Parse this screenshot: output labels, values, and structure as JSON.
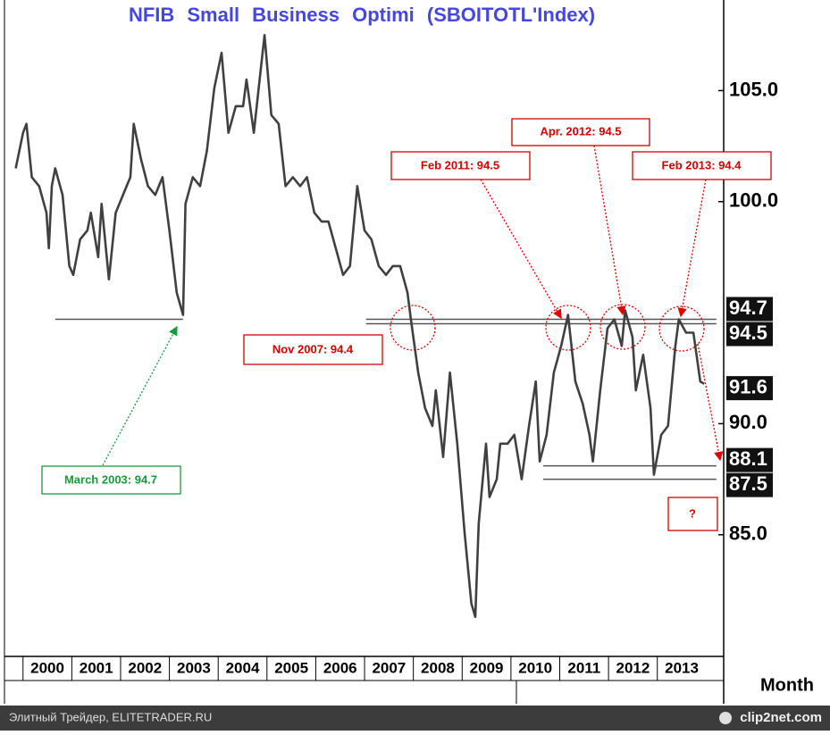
{
  "chart_data": {
    "type": "line",
    "title": "NFIB Small Business Optimi (SBOITOTL'Index)",
    "x_axis_label": "Month",
    "color": "#404040",
    "x": [
      1999.85,
      2000.0,
      2000.07,
      2000.18,
      2000.33,
      2000.48,
      2000.53,
      2000.59,
      2000.66,
      2000.81,
      2000.95,
      2001.03,
      2001.17,
      2001.32,
      2001.39,
      2001.54,
      2001.61,
      2001.76,
      2001.9,
      2002.05,
      2002.2,
      2002.27,
      2002.42,
      2002.56,
      2002.71,
      2002.86,
      2003.0,
      2003.15,
      2003.28,
      2003.33,
      2003.48,
      2003.63,
      2003.77,
      2003.92,
      2004.07,
      2004.21,
      2004.36,
      2004.51,
      2004.58,
      2004.73,
      2004.87,
      2004.95,
      2005.09,
      2005.24,
      2005.38,
      2005.53,
      2005.68,
      2005.82,
      2005.97,
      2006.12,
      2006.26,
      2006.41,
      2006.56,
      2006.7,
      2006.85,
      2007.0,
      2007.14,
      2007.29,
      2007.44,
      2007.58,
      2007.73,
      2007.88,
      2007.95,
      2008.1,
      2008.24,
      2008.39,
      2008.46,
      2008.61,
      2008.75,
      2008.9,
      2009.05,
      2009.19,
      2009.27,
      2009.34,
      2009.49,
      2009.56,
      2009.71,
      2009.78,
      2009.93,
      2010.07,
      2010.22,
      2010.37,
      2010.51,
      2010.59,
      2010.73,
      2010.88,
      2011.03,
      2011.17,
      2011.32,
      2011.47,
      2011.61,
      2011.68,
      2011.83,
      2011.98,
      2012.12,
      2012.27,
      2012.34,
      2012.49,
      2012.56,
      2012.71,
      2012.86,
      2012.93,
      2013.08,
      2013.22,
      2013.37,
      2013.44,
      2013.59,
      2013.74,
      2013.88,
      2013.96
    ],
    "values": [
      101.5,
      103.1,
      103.5,
      101.1,
      100.7,
      99.5,
      97.9,
      100.7,
      101.5,
      100.3,
      97.1,
      96.7,
      98.3,
      98.7,
      99.5,
      97.5,
      99.9,
      96.5,
      99.5,
      100.3,
      101.1,
      103.5,
      101.9,
      100.7,
      100.3,
      101.1,
      98.7,
      95.9,
      94.9,
      99.9,
      101.1,
      100.7,
      102.3,
      105.1,
      106.7,
      103.1,
      104.3,
      104.3,
      105.5,
      103.1,
      105.9,
      107.5,
      103.9,
      103.5,
      100.7,
      101.1,
      100.7,
      101.1,
      99.5,
      99.1,
      99.1,
      97.9,
      96.7,
      97.1,
      100.7,
      98.7,
      98.3,
      97.1,
      96.7,
      97.1,
      97.1,
      95.9,
      94.7,
      92.3,
      90.7,
      89.9,
      91.5,
      88.5,
      92.3,
      89.1,
      85.1,
      81.9,
      81.3,
      85.5,
      89.1,
      86.7,
      87.5,
      89.1,
      89.1,
      89.5,
      87.5,
      89.9,
      91.9,
      88.3,
      89.5,
      92.3,
      93.5,
      94.9,
      91.9,
      90.9,
      89.5,
      88.3,
      91.5,
      94.3,
      94.7,
      93.5,
      95.1,
      93.9,
      91.5,
      93.1,
      90.7,
      87.7,
      89.5,
      89.9,
      93.5,
      94.7,
      94.1,
      94.1,
      91.9,
      91.8
    ],
    "xlim": [
      1999.62,
      2014.36
    ],
    "xticks": [
      2000,
      2001,
      2002,
      2003,
      2004,
      2005,
      2006,
      2007,
      2008,
      2009,
      2010,
      2011,
      2012,
      2013
    ],
    "ylim": [
      79.52,
      109.08
    ],
    "yticks": [
      {
        "value": 105,
        "label": "105.0"
      },
      {
        "value": 100,
        "label": "100.0"
      },
      {
        "value": 90,
        "label": "90.0"
      },
      {
        "value": 85,
        "label": "85.0"
      }
    ],
    "highlight_values": [
      94.7,
      94.5,
      91.6,
      88.1,
      87.5
    ],
    "reference_lines": [
      {
        "value": 94.7,
        "x": [
          2000.66,
          2003.28
        ]
      },
      {
        "value": 94.7,
        "x": [
          2007.03,
          2014.21
        ]
      },
      {
        "value": 94.5,
        "x": [
          2007.03,
          2014.21
        ]
      },
      {
        "value": 88.1,
        "x": [
          2010.66,
          2014.21
        ]
      },
      {
        "value": 87.5,
        "x": [
          2010.66,
          2014.21
        ]
      }
    ],
    "annotations": [
      "March 2003: 94.7",
      "Nov 2007: 94.4",
      "Feb 2011: 94.5",
      "Apr. 2012: 94.5",
      "Feb 2013: 94.4",
      "?"
    ]
  },
  "footer": {
    "left": "Элитный Трейдер, ELITETRADER.RU",
    "right": "clip2net.com"
  }
}
